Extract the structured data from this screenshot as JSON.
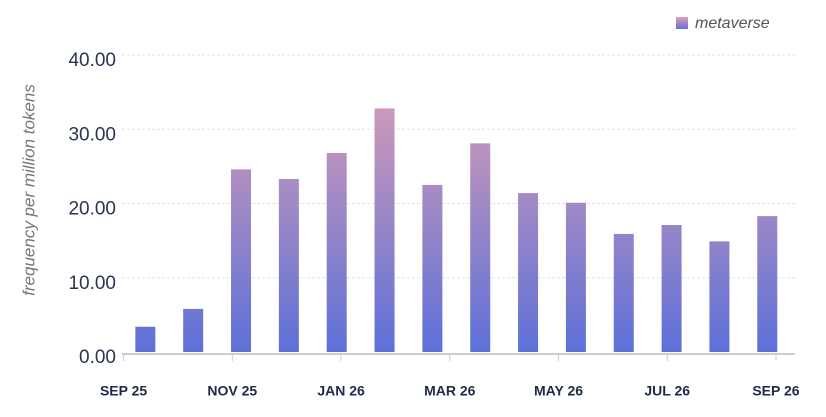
{
  "chart_data": {
    "type": "bar",
    "y_label": "frequency per million tokens",
    "x": [
      0.4,
      1.28,
      2.16,
      3.04,
      3.92,
      4.8,
      5.68,
      6.56,
      7.44,
      8.32,
      9.2,
      10.08,
      10.96,
      11.84
    ],
    "series": [
      {
        "name": "metaverse",
        "color": [
          "#e4a2b2",
          "#5d70d8"
        ],
        "values": [
          3.4,
          5.8,
          24.6,
          23.3,
          26.8,
          32.8,
          22.5,
          28.1,
          21.4,
          20.1,
          15.9,
          17.1,
          14.9,
          18.3
        ]
      }
    ],
    "xlim": [
      -0.25,
      12.35
    ],
    "xticks": [
      {
        "value": 0,
        "label": "SEP 25"
      },
      {
        "value": 2,
        "label": "NOV 25"
      },
      {
        "value": 4,
        "label": "JAN 26"
      },
      {
        "value": 6,
        "label": "MAR 26"
      },
      {
        "value": 8,
        "label": "MAY 26"
      },
      {
        "value": 10,
        "label": "JUL 26"
      },
      {
        "value": 12,
        "label": "SEP 26"
      }
    ],
    "ylim": [
      0,
      40
    ],
    "yticks": [
      {
        "value": 0,
        "label": "0.00"
      },
      {
        "value": 10,
        "label": "10.00"
      },
      {
        "value": 20,
        "label": "20.00"
      },
      {
        "value": 30,
        "label": "30.00"
      },
      {
        "value": 40,
        "label": "40.00"
      }
    ],
    "grid": true,
    "legend": "top-right"
  }
}
